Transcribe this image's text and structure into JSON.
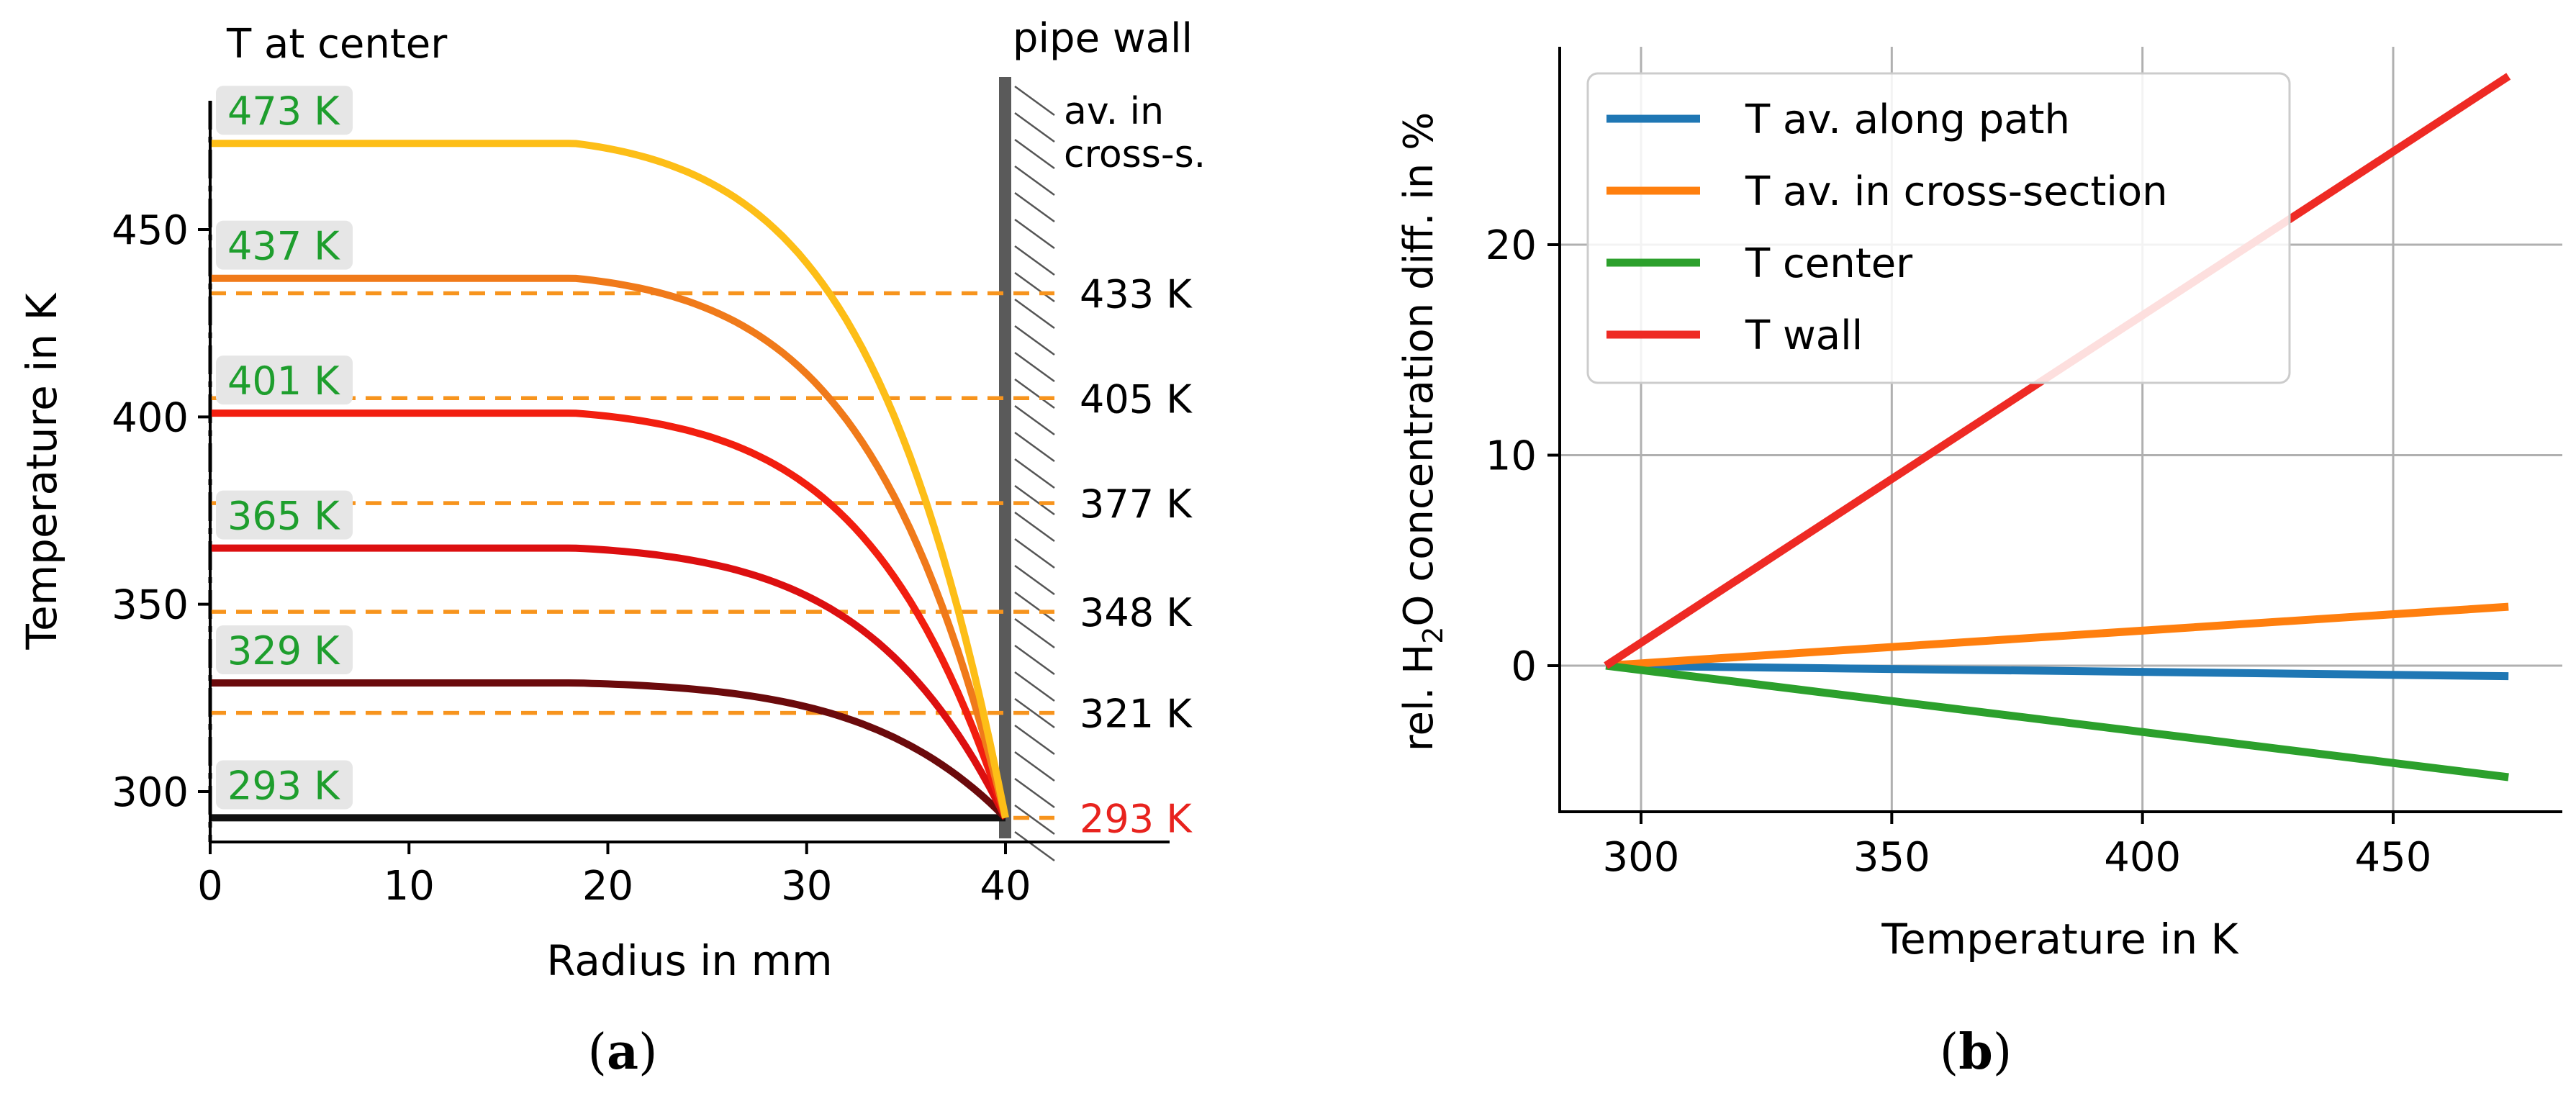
{
  "chart_data": [
    {
      "panel_label": "a",
      "type": "line",
      "xlabel": "Radius in mm",
      "ylabel": "Temperature in K",
      "xlim": [
        0,
        48
      ],
      "ylim": [
        285,
        485
      ],
      "xticks": [
        0,
        10,
        20,
        30,
        40
      ],
      "yticks": [
        300,
        350,
        400,
        450
      ],
      "wall_radius": 40,
      "labels": {
        "center": "T at center",
        "wall": "pipe wall",
        "avg_line1": "av. in",
        "avg_line2": "cross-s."
      },
      "series": [
        {
          "name": "473 K",
          "center_T": 473,
          "wall_T": 293,
          "color": "#FDBE17"
        },
        {
          "name": "437 K",
          "center_T": 437,
          "wall_T": 293,
          "color": "#F07A1A"
        },
        {
          "name": "401 K",
          "center_T": 401,
          "wall_T": 293,
          "color": "#F21E0F"
        },
        {
          "name": "365 K",
          "center_T": 365,
          "wall_T": 293,
          "color": "#DC0F10"
        },
        {
          "name": "329 K",
          "center_T": 329,
          "wall_T": 293,
          "color": "#6B0A0C"
        },
        {
          "name": "293 K",
          "center_T": 293,
          "wall_T": 293,
          "color": "#111111"
        }
      ],
      "cross_section_averages": [
        {
          "value": 433,
          "label": "433 K",
          "color": "#000000"
        },
        {
          "value": 405,
          "label": "405 K",
          "color": "#000000"
        },
        {
          "value": 377,
          "label": "377 K",
          "color": "#000000"
        },
        {
          "value": 348,
          "label": "348 K",
          "color": "#000000"
        },
        {
          "value": 321,
          "label": "321 K",
          "color": "#000000"
        },
        {
          "value": 293,
          "label": "293 K",
          "color": "#E8231E"
        }
      ],
      "center_label_color": "#1E9E2D",
      "avg_line_color": "#F7941D"
    },
    {
      "panel_label": "b",
      "type": "line",
      "xlabel": "Temperature in K",
      "ylabel_prefix": "rel. H",
      "ylabel_sub": "2",
      "ylabel_suffix": "O concentration diff. in %",
      "xlim": [
        285,
        480
      ],
      "ylim": [
        -7,
        29
      ],
      "xticks": [
        300,
        350,
        400,
        450
      ],
      "yticks": [
        0,
        10,
        20
      ],
      "grid": true,
      "legend": "top-left",
      "series": [
        {
          "name": "T av. along path",
          "color": "#1F77B4",
          "x": [
            293,
            473
          ],
          "y": [
            0,
            -0.5
          ]
        },
        {
          "name": "T av. in cross-section",
          "color": "#FF7F0E",
          "x": [
            293,
            473
          ],
          "y": [
            0,
            2.8
          ]
        },
        {
          "name": "T center",
          "color": "#2CA02C",
          "x": [
            293,
            473
          ],
          "y": [
            0,
            -5.3
          ]
        },
        {
          "name": "T wall",
          "color": "#EE2A24",
          "x": [
            293,
            473
          ],
          "y": [
            0,
            28
          ]
        }
      ]
    }
  ]
}
